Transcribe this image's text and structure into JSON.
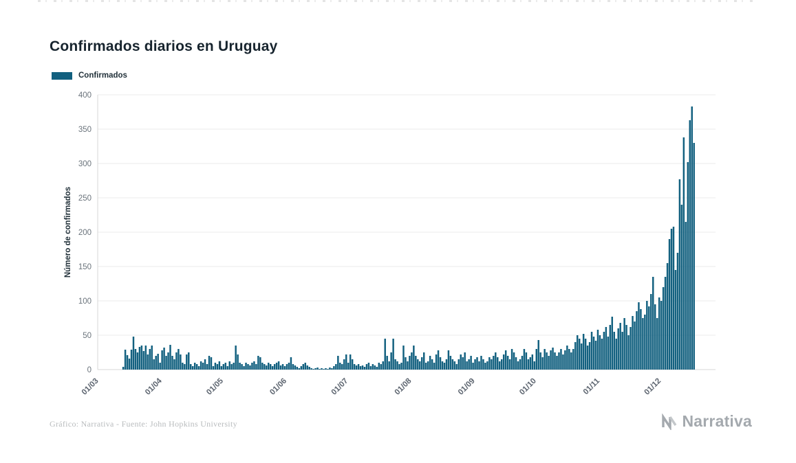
{
  "page": {
    "title": "Confirmados diarios en Uruguay",
    "footer_credit": "Gráfico: Narrativa - Fuente: John Hopkins University",
    "brand": "Narrativa"
  },
  "legend": {
    "label": "Confirmados"
  },
  "colors": {
    "bar": "#12607f",
    "title_text": "#17242e",
    "tick_text": "#5d6570",
    "gridline": "#ebebeb",
    "axis_line": "#d7d7d7",
    "footer_text": "#b9bcbe",
    "brand_gray": "#a4a9ae"
  },
  "chart_data": {
    "type": "bar",
    "title": "Confirmados diarios en Uruguay",
    "xlabel": "",
    "ylabel": "Número de confirmados",
    "ylim": [
      0,
      400
    ],
    "y_ticks": [
      0,
      50,
      100,
      150,
      200,
      250,
      300,
      350,
      400
    ],
    "grid": "horizontal",
    "legend_position": "top-left",
    "frequency": "daily",
    "start_label": "01/03",
    "x_tick_labels": [
      "01/03",
      "01/04",
      "01/05",
      "01/06",
      "01/07",
      "01/08",
      "01/09",
      "01/10",
      "01/11",
      "01/12"
    ],
    "x_tick_day_index": [
      0,
      31,
      61,
      92,
      122,
      153,
      184,
      214,
      245,
      275
    ],
    "x_domain_days": 302,
    "bar_color": "#12607f",
    "series": [
      {
        "name": "Confirmados",
        "values": [
          0,
          0,
          0,
          0,
          0,
          0,
          0,
          0,
          0,
          0,
          0,
          0,
          4,
          29,
          21,
          16,
          29,
          48,
          30,
          25,
          33,
          35,
          27,
          35,
          22,
          30,
          35,
          15,
          20,
          23,
          10,
          28,
          32,
          20,
          25,
          36,
          20,
          15,
          25,
          30,
          22,
          10,
          8,
          22,
          25,
          8,
          5,
          10,
          8,
          5,
          12,
          10,
          15,
          8,
          20,
          18,
          5,
          10,
          8,
          12,
          5,
          8,
          10,
          5,
          12,
          8,
          10,
          35,
          22,
          10,
          8,
          5,
          10,
          8,
          6,
          10,
          12,
          8,
          20,
          18,
          10,
          8,
          6,
          10,
          8,
          5,
          8,
          10,
          12,
          6,
          8,
          5,
          8,
          10,
          18,
          8,
          6,
          4,
          2,
          5,
          8,
          10,
          6,
          4,
          2,
          1,
          2,
          3,
          1,
          2,
          1,
          2,
          1,
          3,
          2,
          5,
          8,
          20,
          10,
          8,
          15,
          22,
          10,
          22,
          15,
          8,
          6,
          8,
          5,
          6,
          4,
          8,
          10,
          5,
          8,
          6,
          4,
          10,
          8,
          12,
          45,
          20,
          12,
          25,
          45,
          15,
          12,
          8,
          10,
          35,
          18,
          12,
          20,
          25,
          35,
          20,
          15,
          12,
          18,
          25,
          10,
          12,
          20,
          15,
          10,
          22,
          28,
          18,
          12,
          10,
          15,
          28,
          20,
          15,
          12,
          8,
          15,
          22,
          18,
          25,
          12,
          15,
          20,
          10,
          15,
          18,
          12,
          20,
          15,
          10,
          12,
          18,
          15,
          20,
          25,
          18,
          12,
          15,
          22,
          28,
          20,
          15,
          30,
          25,
          18,
          12,
          15,
          20,
          30,
          25,
          15,
          18,
          22,
          12,
          30,
          43,
          25,
          18,
          30,
          25,
          20,
          28,
          32,
          25,
          20,
          25,
          30,
          22,
          28,
          35,
          30,
          25,
          30,
          40,
          50,
          45,
          38,
          52,
          45,
          35,
          40,
          55,
          48,
          42,
          58,
          50,
          45,
          55,
          62,
          48,
          65,
          77,
          55,
          45,
          60,
          68,
          55,
          75,
          65,
          50,
          62,
          78,
          70,
          85,
          98,
          88,
          75,
          80,
          100,
          92,
          110,
          135,
          95,
          75,
          105,
          100,
          120,
          135,
          155,
          190,
          205,
          208,
          145,
          170,
          277,
          240,
          338,
          215,
          302,
          363,
          383,
          330
        ]
      }
    ]
  }
}
